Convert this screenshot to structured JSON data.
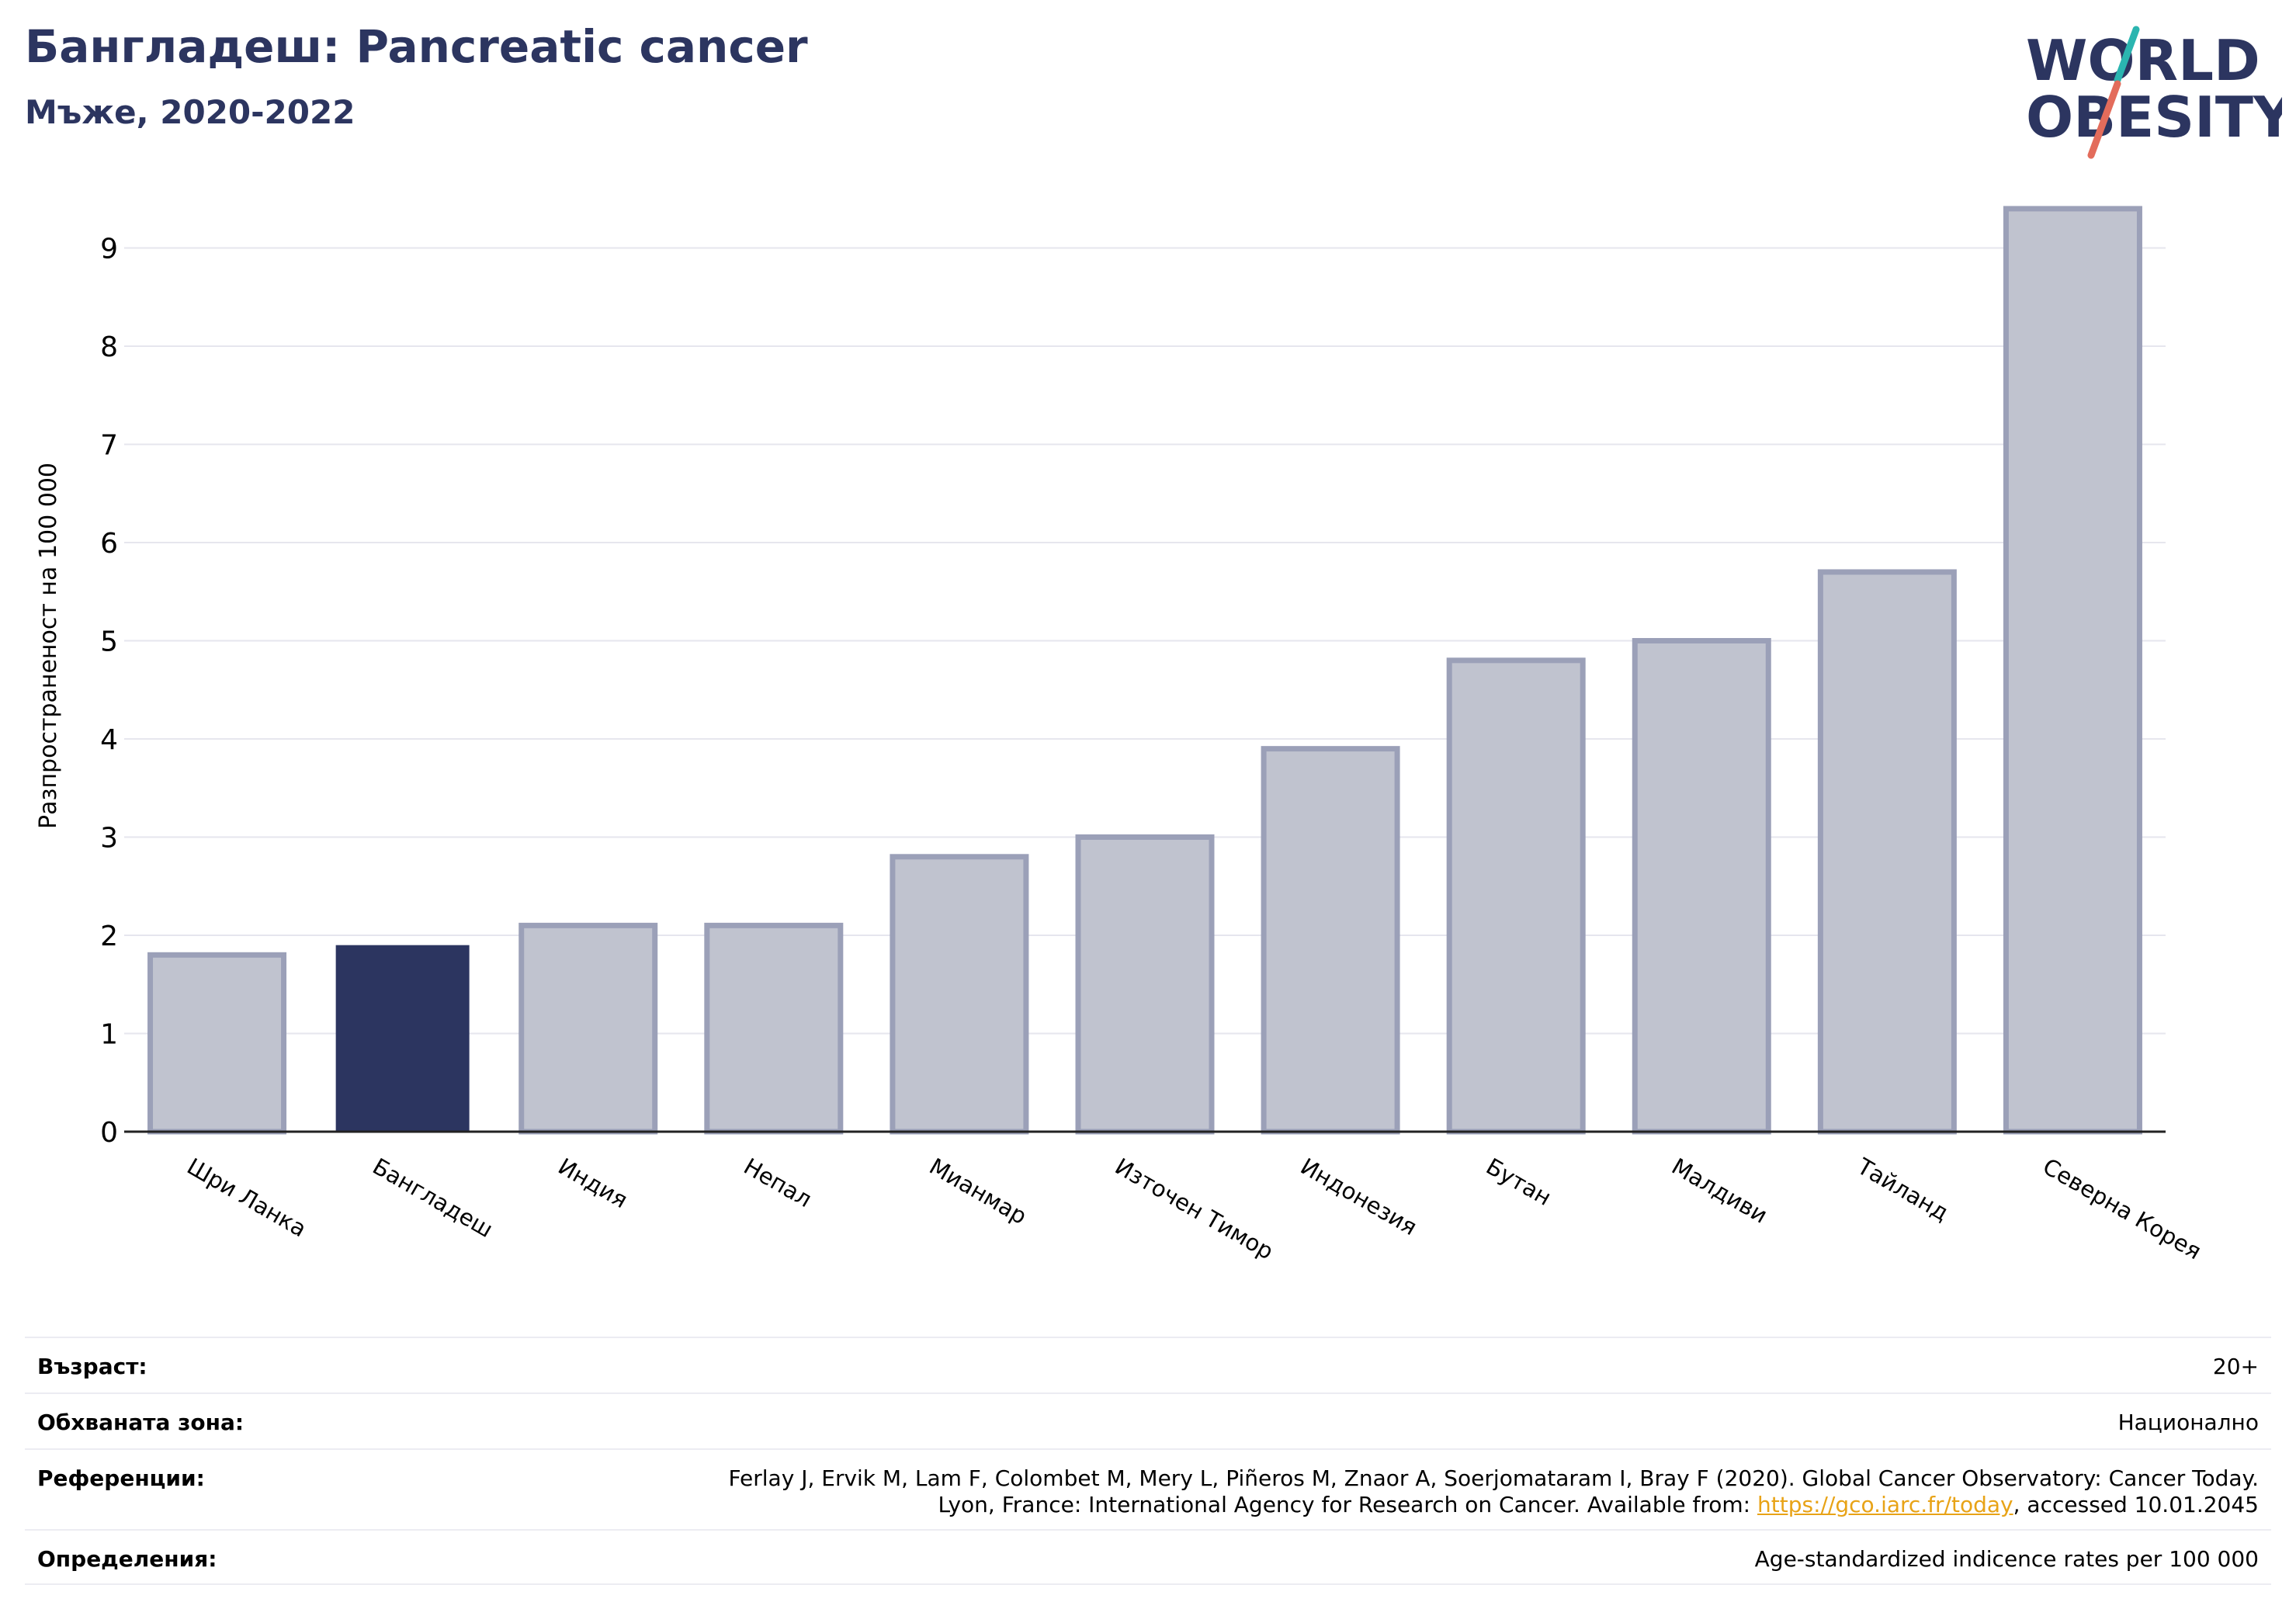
{
  "header": {
    "title": "Бангладеш: Pancreatic cancer",
    "subtitle": "Мъже, 2020-2022"
  },
  "logo": {
    "line1": "WORLD",
    "line2": "OBESITY"
  },
  "colors": {
    "highlight_bar": "#2c3560",
    "other_bar_fill": "#c0c3cf",
    "other_bar_stroke": "#9ba0b8",
    "title": "#2c3560",
    "grid": "#e6e6ee",
    "link": "#e8a317",
    "logo_teal": "#2bb5b0",
    "logo_coral": "#e36c5b"
  },
  "chart_data": {
    "type": "bar",
    "title": "Бангладеш: Pancreatic cancer",
    "subtitle": "Мъже, 2020-2022",
    "ylabel": "Разпространеност  на 100 000",
    "xlabel": "",
    "categories": [
      "Шри Ланка",
      "Бангладеш",
      "Индия",
      "Непал",
      "Мианмар",
      "Източен Тимор",
      "Индонезия",
      "Бутан",
      "Малдиви",
      "Тайланд",
      "Северна Корея"
    ],
    "values": [
      1.8,
      1.9,
      2.1,
      2.1,
      2.8,
      3.0,
      3.9,
      4.8,
      5.0,
      5.7,
      9.4
    ],
    "highlight": "Бангладеш",
    "yticks": [
      0,
      1,
      2,
      3,
      4,
      5,
      6,
      7,
      8,
      9
    ],
    "ylim": [
      0,
      9.6
    ],
    "grid": true,
    "legend": "none"
  },
  "info": {
    "age_label": "Възраст:",
    "age_value": "20+",
    "area_label": "Обхваната зона:",
    "area_value": "Национално",
    "ref_label": "Референции:",
    "ref_line1": "Ferlay J, Ervik M, Lam F, Colombet M, Mery L, Piñeros M, Znaor A, Soerjomataram I, Bray F (2020). Global Cancer Observatory: Cancer Today.",
    "ref_line2_prefix": "Lyon, France: International Agency for Research on Cancer. Available from: ",
    "ref_link": "https://gco.iarc.fr/today",
    "ref_line2_suffix": ", accessed 10.01.2045",
    "def_label": "Определения:",
    "def_value": "Age-standardized indicence rates per 100 000"
  }
}
